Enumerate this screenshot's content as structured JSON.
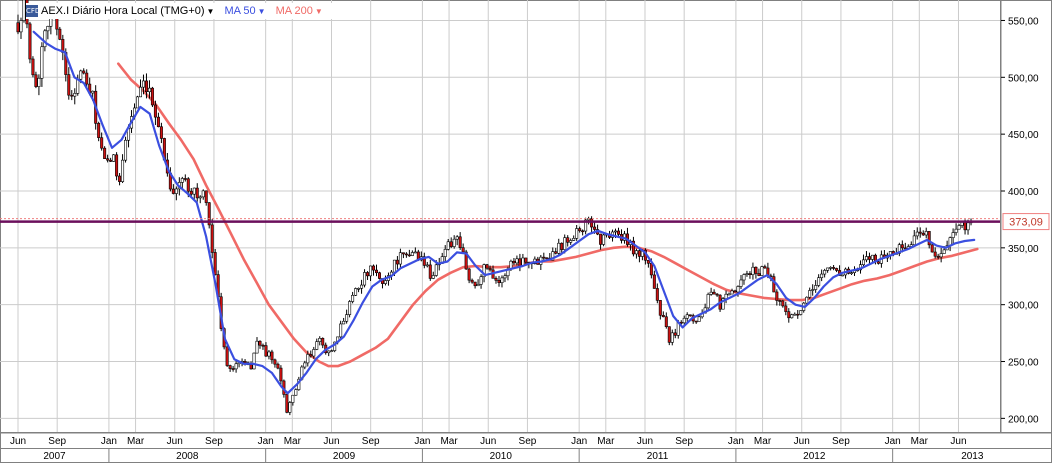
{
  "legend": {
    "logo_icon": "cfd-logo-icon",
    "symbol": "AEX.I Diário Hora Local (TMG+0)",
    "ma50": "MA 50",
    "ma200": "MA 200",
    "caret_icon": "caret-down-icon"
  },
  "colors": {
    "ma50": "#3b4fe0",
    "ma200": "#f06a66",
    "priceline": "#6b0f5c",
    "pricelabel_border": "#f08080",
    "pricelabel_text": "#c0392b",
    "up_candle": "#ffffff",
    "down_candle": "#cc1111",
    "grid": "#cccccc"
  },
  "chart_data": {
    "type": "candlestick",
    "instrument": "AEX.I",
    "last_price": 373.09,
    "last_price_label": "373,09",
    "ylim": [
      188,
      568
    ],
    "y_ticks": [
      200,
      250,
      300,
      350,
      400,
      450,
      500,
      550
    ],
    "y_tick_labels": [
      "200,00",
      "250,00",
      "300,00",
      "350,00",
      "400,00",
      "450,00",
      "500,00",
      "550,00"
    ],
    "x_range": [
      2007.42,
      2013.57
    ],
    "month_ticks": [
      {
        "label": "Jun",
        "t": 2007.42
      },
      {
        "label": "Sep",
        "t": 2007.67
      },
      {
        "label": "Jan",
        "t": 2008.0
      },
      {
        "label": "Mar",
        "t": 2008.17
      },
      {
        "label": "Jun",
        "t": 2008.42
      },
      {
        "label": "Sep",
        "t": 2008.67
      },
      {
        "label": "Jan",
        "t": 2009.0
      },
      {
        "label": "Mar",
        "t": 2009.17
      },
      {
        "label": "Jun",
        "t": 2009.42
      },
      {
        "label": "Sep",
        "t": 2009.67
      },
      {
        "label": "Jan",
        "t": 2010.0
      },
      {
        "label": "Mar",
        "t": 2010.17
      },
      {
        "label": "Jun",
        "t": 2010.42
      },
      {
        "label": "Sep",
        "t": 2010.67
      },
      {
        "label": "Jan",
        "t": 2011.0
      },
      {
        "label": "Mar",
        "t": 2011.17
      },
      {
        "label": "Jun",
        "t": 2011.42
      },
      {
        "label": "Sep",
        "t": 2011.67
      },
      {
        "label": "Jan",
        "t": 2012.0
      },
      {
        "label": "Mar",
        "t": 2012.17
      },
      {
        "label": "Jun",
        "t": 2012.42
      },
      {
        "label": "Sep",
        "t": 2012.67
      },
      {
        "label": "Jan",
        "t": 2013.0
      },
      {
        "label": "Mar",
        "t": 2013.17
      },
      {
        "label": "Jun",
        "t": 2013.42
      }
    ],
    "year_ticks": [
      {
        "label": "2007",
        "t": 2007.0
      },
      {
        "label": "2008",
        "t": 2008.0
      },
      {
        "label": "2009",
        "t": 2009.0
      },
      {
        "label": "2010",
        "t": 2010.0
      },
      {
        "label": "2011",
        "t": 2011.0
      },
      {
        "label": "2012",
        "t": 2012.0
      },
      {
        "label": "2013",
        "t": 2013.0
      }
    ],
    "price_path": [
      [
        2007.42,
        548
      ],
      [
        2007.46,
        562
      ],
      [
        2007.5,
        520
      ],
      [
        2007.54,
        485
      ],
      [
        2007.58,
        540
      ],
      [
        2007.62,
        555
      ],
      [
        2007.66,
        545
      ],
      [
        2007.7,
        535
      ],
      [
        2007.74,
        480
      ],
      [
        2007.78,
        490
      ],
      [
        2007.82,
        505
      ],
      [
        2007.86,
        492
      ],
      [
        2007.9,
        480
      ],
      [
        2007.94,
        440
      ],
      [
        2007.98,
        420
      ],
      [
        2008.02,
        432
      ],
      [
        2008.06,
        408
      ],
      [
        2008.1,
        440
      ],
      [
        2008.14,
        465
      ],
      [
        2008.18,
        480
      ],
      [
        2008.22,
        490
      ],
      [
        2008.26,
        483
      ],
      [
        2008.3,
        470
      ],
      [
        2008.34,
        440
      ],
      [
        2008.38,
        412
      ],
      [
        2008.42,
        395
      ],
      [
        2008.46,
        412
      ],
      [
        2008.5,
        405
      ],
      [
        2008.54,
        402
      ],
      [
        2008.58,
        392
      ],
      [
        2008.6,
        400
      ],
      [
        2008.62,
        385
      ],
      [
        2008.66,
        350
      ],
      [
        2008.7,
        300
      ],
      [
        2008.74,
        255
      ],
      [
        2008.78,
        240
      ],
      [
        2008.82,
        250
      ],
      [
        2008.86,
        248
      ],
      [
        2008.9,
        242
      ],
      [
        2008.94,
        268
      ],
      [
        2008.98,
        262
      ],
      [
        2009.02,
        255
      ],
      [
        2009.06,
        248
      ],
      [
        2009.1,
        232
      ],
      [
        2009.14,
        205
      ],
      [
        2009.18,
        222
      ],
      [
        2009.22,
        238
      ],
      [
        2009.26,
        252
      ],
      [
        2009.3,
        258
      ],
      [
        2009.34,
        268
      ],
      [
        2009.38,
        262
      ],
      [
        2009.42,
        256
      ],
      [
        2009.46,
        272
      ],
      [
        2009.5,
        288
      ],
      [
        2009.54,
        305
      ],
      [
        2009.58,
        316
      ],
      [
        2009.62,
        322
      ],
      [
        2009.66,
        330
      ],
      [
        2009.7,
        328
      ],
      [
        2009.74,
        318
      ],
      [
        2009.78,
        325
      ],
      [
        2009.82,
        337
      ],
      [
        2009.86,
        342
      ],
      [
        2009.9,
        340
      ],
      [
        2009.94,
        348
      ],
      [
        2009.98,
        342
      ],
      [
        2010.02,
        335
      ],
      [
        2010.06,
        325
      ],
      [
        2010.1,
        337
      ],
      [
        2010.14,
        348
      ],
      [
        2010.18,
        354
      ],
      [
        2010.22,
        355
      ],
      [
        2010.26,
        344
      ],
      [
        2010.3,
        320
      ],
      [
        2010.34,
        318
      ],
      [
        2010.38,
        330
      ],
      [
        2010.42,
        335
      ],
      [
        2010.46,
        325
      ],
      [
        2010.5,
        318
      ],
      [
        2010.54,
        332
      ],
      [
        2010.58,
        340
      ],
      [
        2010.62,
        338
      ],
      [
        2010.66,
        342
      ],
      [
        2010.7,
        335
      ],
      [
        2010.74,
        340
      ],
      [
        2010.78,
        345
      ],
      [
        2010.82,
        344
      ],
      [
        2010.86,
        350
      ],
      [
        2010.9,
        355
      ],
      [
        2010.94,
        360
      ],
      [
        2010.98,
        365
      ],
      [
        2011.02,
        368
      ],
      [
        2011.06,
        372
      ],
      [
        2011.1,
        368
      ],
      [
        2011.14,
        355
      ],
      [
        2011.18,
        362
      ],
      [
        2011.22,
        365
      ],
      [
        2011.26,
        360
      ],
      [
        2011.3,
        356
      ],
      [
        2011.34,
        350
      ],
      [
        2011.38,
        345
      ],
      [
        2011.42,
        342
      ],
      [
        2011.46,
        330
      ],
      [
        2011.5,
        300
      ],
      [
        2011.54,
        285
      ],
      [
        2011.58,
        268
      ],
      [
        2011.62,
        278
      ],
      [
        2011.66,
        290
      ],
      [
        2011.7,
        295
      ],
      [
        2011.74,
        285
      ],
      [
        2011.78,
        292
      ],
      [
        2011.82,
        305
      ],
      [
        2011.86,
        308
      ],
      [
        2011.9,
        300
      ],
      [
        2011.94,
        305
      ],
      [
        2011.98,
        310
      ],
      [
        2012.02,
        315
      ],
      [
        2012.06,
        325
      ],
      [
        2012.1,
        330
      ],
      [
        2012.14,
        328
      ],
      [
        2012.18,
        334
      ],
      [
        2012.22,
        325
      ],
      [
        2012.26,
        305
      ],
      [
        2012.3,
        298
      ],
      [
        2012.34,
        292
      ],
      [
        2012.38,
        288
      ],
      [
        2012.42,
        296
      ],
      [
        2012.46,
        305
      ],
      [
        2012.5,
        318
      ],
      [
        2012.54,
        326
      ],
      [
        2012.58,
        331
      ],
      [
        2012.62,
        333
      ],
      [
        2012.66,
        328
      ],
      [
        2012.7,
        330
      ],
      [
        2012.74,
        326
      ],
      [
        2012.78,
        330
      ],
      [
        2012.82,
        338
      ],
      [
        2012.86,
        343
      ],
      [
        2012.9,
        340
      ],
      [
        2012.94,
        342
      ],
      [
        2012.98,
        345
      ],
      [
        2013.02,
        348
      ],
      [
        2013.06,
        350
      ],
      [
        2013.1,
        352
      ],
      [
        2013.14,
        358
      ],
      [
        2013.18,
        366
      ],
      [
        2013.22,
        362
      ],
      [
        2013.26,
        345
      ],
      [
        2013.3,
        340
      ],
      [
        2013.34,
        350
      ],
      [
        2013.38,
        360
      ],
      [
        2013.42,
        366
      ],
      [
        2013.46,
        370
      ],
      [
        2013.5,
        373.09
      ]
    ],
    "ma50_path": [
      [
        2007.52,
        540
      ],
      [
        2007.6,
        530
      ],
      [
        2007.66,
        525
      ],
      [
        2007.72,
        522
      ],
      [
        2007.78,
        500
      ],
      [
        2007.84,
        495
      ],
      [
        2007.9,
        480
      ],
      [
        2007.96,
        458
      ],
      [
        2008.02,
        438
      ],
      [
        2008.08,
        445
      ],
      [
        2008.14,
        460
      ],
      [
        2008.2,
        474
      ],
      [
        2008.26,
        468
      ],
      [
        2008.32,
        440
      ],
      [
        2008.38,
        418
      ],
      [
        2008.44,
        405
      ],
      [
        2008.5,
        398
      ],
      [
        2008.56,
        390
      ],
      [
        2008.62,
        360
      ],
      [
        2008.68,
        318
      ],
      [
        2008.74,
        270
      ],
      [
        2008.8,
        252
      ],
      [
        2008.86,
        248
      ],
      [
        2008.92,
        248
      ],
      [
        2008.98,
        246
      ],
      [
        2009.04,
        240
      ],
      [
        2009.1,
        228
      ],
      [
        2009.14,
        222
      ],
      [
        2009.2,
        230
      ],
      [
        2009.26,
        240
      ],
      [
        2009.32,
        252
      ],
      [
        2009.38,
        260
      ],
      [
        2009.44,
        265
      ],
      [
        2009.5,
        272
      ],
      [
        2009.56,
        286
      ],
      [
        2009.62,
        302
      ],
      [
        2009.68,
        316
      ],
      [
        2009.74,
        322
      ],
      [
        2009.8,
        325
      ],
      [
        2009.86,
        332
      ],
      [
        2009.92,
        336
      ],
      [
        2009.98,
        340
      ],
      [
        2010.04,
        342
      ],
      [
        2010.1,
        336
      ],
      [
        2010.16,
        338
      ],
      [
        2010.22,
        346
      ],
      [
        2010.28,
        345
      ],
      [
        2010.34,
        334
      ],
      [
        2010.4,
        326
      ],
      [
        2010.46,
        328
      ],
      [
        2010.52,
        330
      ],
      [
        2010.58,
        332
      ],
      [
        2010.64,
        334
      ],
      [
        2010.7,
        337
      ],
      [
        2010.76,
        338
      ],
      [
        2010.82,
        340
      ],
      [
        2010.88,
        344
      ],
      [
        2010.94,
        350
      ],
      [
        2011.0,
        356
      ],
      [
        2011.06,
        362
      ],
      [
        2011.12,
        365
      ],
      [
        2011.18,
        362
      ],
      [
        2011.24,
        360
      ],
      [
        2011.3,
        358
      ],
      [
        2011.36,
        352
      ],
      [
        2011.42,
        346
      ],
      [
        2011.48,
        334
      ],
      [
        2011.54,
        312
      ],
      [
        2011.6,
        290
      ],
      [
        2011.66,
        280
      ],
      [
        2011.72,
        288
      ],
      [
        2011.78,
        292
      ],
      [
        2011.84,
        296
      ],
      [
        2011.9,
        302
      ],
      [
        2011.96,
        306
      ],
      [
        2012.02,
        310
      ],
      [
        2012.08,
        316
      ],
      [
        2012.14,
        322
      ],
      [
        2012.2,
        326
      ],
      [
        2012.26,
        318
      ],
      [
        2012.32,
        306
      ],
      [
        2012.38,
        300
      ],
      [
        2012.44,
        298
      ],
      [
        2012.5,
        306
      ],
      [
        2012.56,
        316
      ],
      [
        2012.62,
        324
      ],
      [
        2012.68,
        328
      ],
      [
        2012.74,
        330
      ],
      [
        2012.8,
        332
      ],
      [
        2012.86,
        336
      ],
      [
        2012.92,
        340
      ],
      [
        2012.98,
        343
      ],
      [
        2013.04,
        346
      ],
      [
        2013.1,
        349
      ],
      [
        2013.16,
        353
      ],
      [
        2013.22,
        357
      ],
      [
        2013.28,
        352
      ],
      [
        2013.34,
        350
      ],
      [
        2013.4,
        354
      ],
      [
        2013.46,
        356
      ],
      [
        2013.52,
        357
      ]
    ],
    "ma200_path": [
      [
        2008.06,
        512
      ],
      [
        2008.14,
        498
      ],
      [
        2008.22,
        488
      ],
      [
        2008.3,
        476
      ],
      [
        2008.38,
        460
      ],
      [
        2008.46,
        445
      ],
      [
        2008.54,
        428
      ],
      [
        2008.62,
        405
      ],
      [
        2008.7,
        384
      ],
      [
        2008.78,
        362
      ],
      [
        2008.86,
        340
      ],
      [
        2008.94,
        320
      ],
      [
        2009.02,
        300
      ],
      [
        2009.1,
        285
      ],
      [
        2009.18,
        270
      ],
      [
        2009.26,
        258
      ],
      [
        2009.34,
        250
      ],
      [
        2009.4,
        246
      ],
      [
        2009.46,
        246
      ],
      [
        2009.54,
        250
      ],
      [
        2009.62,
        256
      ],
      [
        2009.7,
        262
      ],
      [
        2009.78,
        270
      ],
      [
        2009.86,
        285
      ],
      [
        2009.94,
        300
      ],
      [
        2010.02,
        312
      ],
      [
        2010.1,
        322
      ],
      [
        2010.18,
        328
      ],
      [
        2010.26,
        333
      ],
      [
        2010.34,
        334
      ],
      [
        2010.42,
        333
      ],
      [
        2010.5,
        333
      ],
      [
        2010.58,
        334
      ],
      [
        2010.66,
        336
      ],
      [
        2010.74,
        338
      ],
      [
        2010.82,
        338
      ],
      [
        2010.9,
        340
      ],
      [
        2010.98,
        342
      ],
      [
        2011.06,
        345
      ],
      [
        2011.14,
        348
      ],
      [
        2011.22,
        350
      ],
      [
        2011.3,
        351
      ],
      [
        2011.38,
        350
      ],
      [
        2011.46,
        347
      ],
      [
        2011.54,
        342
      ],
      [
        2011.62,
        336
      ],
      [
        2011.7,
        330
      ],
      [
        2011.78,
        324
      ],
      [
        2011.86,
        318
      ],
      [
        2011.94,
        313
      ],
      [
        2012.02,
        310
      ],
      [
        2012.1,
        308
      ],
      [
        2012.18,
        306
      ],
      [
        2012.26,
        305
      ],
      [
        2012.34,
        304
      ],
      [
        2012.42,
        304
      ],
      [
        2012.5,
        306
      ],
      [
        2012.58,
        310
      ],
      [
        2012.66,
        314
      ],
      [
        2012.74,
        318
      ],
      [
        2012.82,
        321
      ],
      [
        2012.9,
        323
      ],
      [
        2012.98,
        326
      ],
      [
        2013.06,
        330
      ],
      [
        2013.14,
        334
      ],
      [
        2013.22,
        338
      ],
      [
        2013.3,
        341
      ],
      [
        2013.38,
        343
      ],
      [
        2013.46,
        346
      ],
      [
        2013.54,
        349
      ]
    ]
  }
}
